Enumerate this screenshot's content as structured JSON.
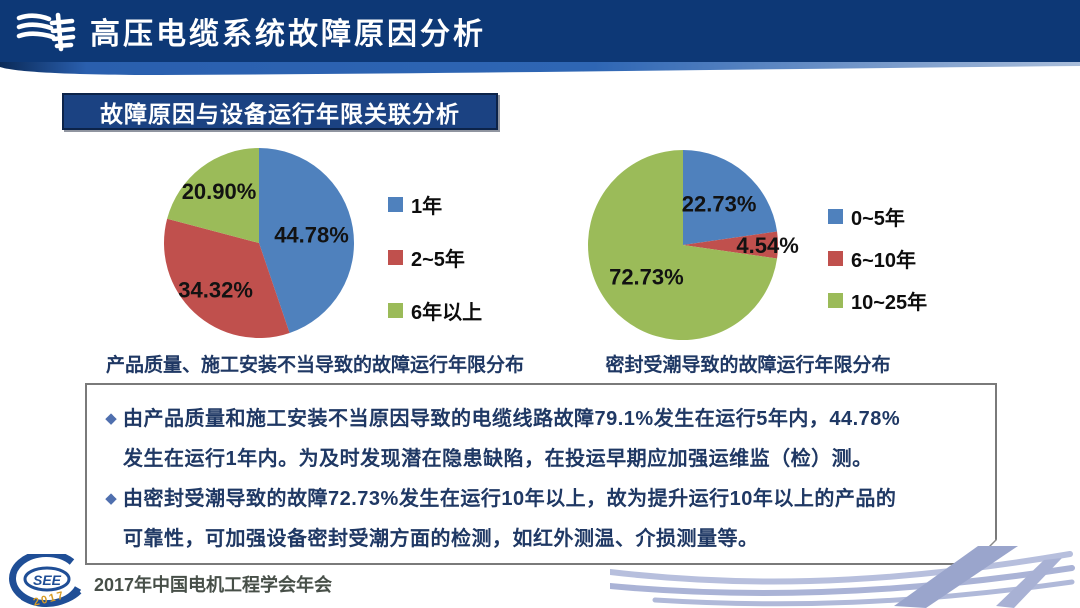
{
  "header": {
    "title": "高压电缆系统故障原因分析"
  },
  "banner": {
    "text": "故障原因与设备运行年限关联分析"
  },
  "chart_data": [
    {
      "type": "pie",
      "title": "产品质量、施工安装不当导致的故障运行年限分布",
      "labels": [
        "1年",
        "2~5年",
        "6年以上"
      ],
      "values": [
        44.78,
        34.32,
        20.9
      ],
      "value_labels": [
        "44.78%",
        "34.32%",
        "20.90%"
      ],
      "colors": [
        "#4F81BD",
        "#C0504D",
        "#9BBB59"
      ],
      "start_angle": 0,
      "direction": "clockwise",
      "legend_position": "right",
      "label_radius": [
        0.56,
        0.67,
        0.69
      ]
    },
    {
      "type": "pie",
      "title": "密封受潮导致的故障运行年限分布",
      "labels": [
        "0~5年",
        "6~10年",
        "10~25年"
      ],
      "values": [
        22.73,
        4.54,
        72.73
      ],
      "value_labels": [
        "22.73%",
        "4.54%",
        "72.73%"
      ],
      "colors": [
        "#4F81BD",
        "#C0504D",
        "#9BBB59"
      ],
      "start_angle": 0,
      "direction": "clockwise",
      "legend_position": "right",
      "label_radius": [
        0.58,
        0.89,
        0.51
      ]
    }
  ],
  "notes": {
    "bullets": [
      {
        "lines": [
          "由产品质量和施工安装不当原因导致的电缆线路故障79.1%发生在运行5年内，44.78%",
          "发生在运行1年内。为及时发现潜在隐患缺陷，在投运早期应加强运维监（检）测。"
        ]
      },
      {
        "lines": [
          "由密封受潮导致的故障72.73%发生在运行10年以上，故为提升运行10年以上的产品的",
          "可靠性，可加强设备密封受潮方面的检测，如红外测温、介损测量等。"
        ]
      }
    ]
  },
  "footer": {
    "conference": "2017年中国电机工程学会年会",
    "logo_text": "SEE",
    "logo_year": "2017"
  },
  "theme": {
    "header_navy": "#0d3876",
    "banner_navy": "#1b4282",
    "note_text_navy": "#1f3864",
    "swoosh_periwinkle": "#aab3d6"
  }
}
